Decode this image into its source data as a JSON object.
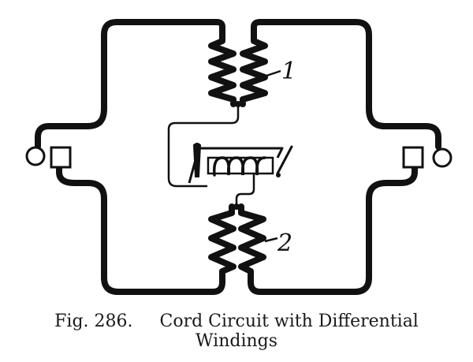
{
  "diagram": {
    "winding_labels": [
      "1",
      "2"
    ],
    "ink_color": "#111111"
  },
  "caption": {
    "figure_number": "Fig. 286.",
    "line1": "Cord Circuit with Differential",
    "line2": "Windings"
  }
}
